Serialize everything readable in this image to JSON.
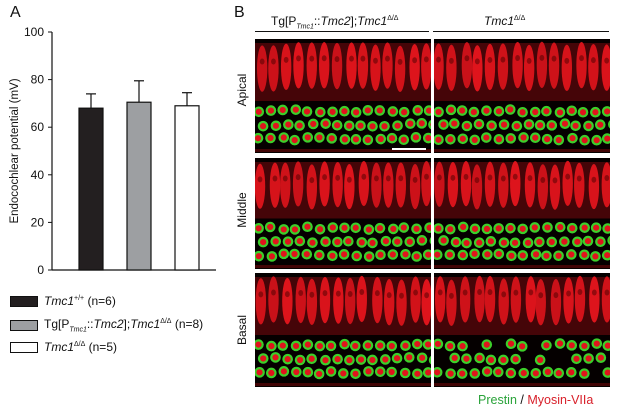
{
  "panels": {
    "a_label": "A",
    "b_label": "B"
  },
  "chart_data": {
    "type": "bar",
    "ylabel": "Endocochlear potential (mV)",
    "ylim": [
      0,
      100
    ],
    "yticks": [
      0,
      20,
      40,
      60,
      80,
      100
    ],
    "categories": [
      "Tmc1+/+",
      "Tg[PTmc1::Tmc2];Tmc1Δ/Δ",
      "Tmc1Δ/Δ"
    ],
    "values": [
      68,
      70.5,
      69
    ],
    "errors": [
      6,
      9,
      5.5
    ],
    "colors": [
      "#231f20",
      "#9d9fa2",
      "#ffffff"
    ]
  },
  "legend": [
    {
      "gene": "Tmc1",
      "sup": "+/+",
      "n": "(n=6)",
      "color": "#231f20"
    },
    {
      "prefix": "Tg[P",
      "sub": "Tmc1",
      "mid": "::",
      "gene2": "Tmc2",
      "sep": "];",
      "gene": "Tmc1",
      "sup": "Δ/Δ",
      "n": "(n=8)",
      "color": "#9d9fa2"
    },
    {
      "gene": "Tmc1",
      "sup": "Δ/Δ",
      "n": "(n=5)",
      "color": "#ffffff"
    }
  ],
  "micrographs": {
    "col_titles": [
      {
        "prefix": "Tg[P",
        "sub": "Tmc1",
        "mid": "::",
        "gene2": "Tmc2",
        "sep": "];",
        "gene": "Tmc1",
        "sup": "Δ/Δ"
      },
      {
        "gene": "Tmc1",
        "sup": "Δ/Δ"
      }
    ],
    "row_labels": [
      "Apical",
      "Middle",
      "Basal"
    ],
    "caption": {
      "green": "Prestin",
      "sep": " / ",
      "red": "Myosin-VIIa"
    },
    "colors": {
      "hair_cell_red": "#e0141c",
      "prestin_green": "#3ccf2a",
      "background": "#050000"
    }
  }
}
